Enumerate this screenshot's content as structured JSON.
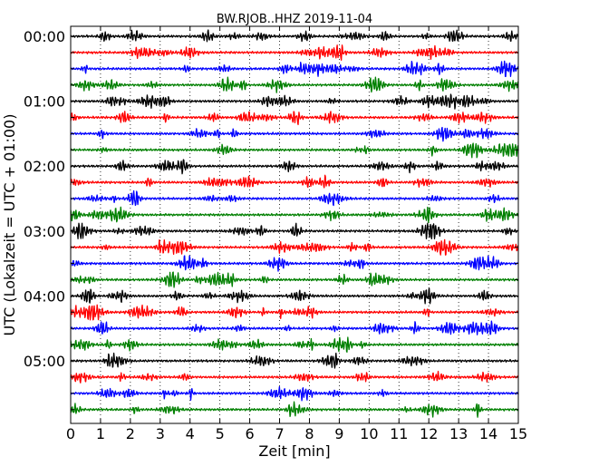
{
  "chart_data": {
    "type": "line",
    "title": "BW.RJOB..HHZ 2019-11-04",
    "xlabel": "Zeit  [min]",
    "ylabel": "UTC (Lokalzeit = UTC + 01:00)",
    "xlim": [
      0,
      15
    ],
    "x_ticks": [
      "0",
      "1",
      "2",
      "3",
      "4",
      "5",
      "6",
      "7",
      "8",
      "9",
      "10",
      "11",
      "12",
      "13",
      "14",
      "15"
    ],
    "y_tick_labels": [
      "00:00",
      "01:00",
      "02:00",
      "03:00",
      "04:00",
      "05:00"
    ],
    "y_tick_rows": [
      0,
      4,
      8,
      12,
      16,
      20
    ],
    "grid": "vertical dotted at each minute",
    "colors": [
      "#000000",
      "#ff0000",
      "#0000ff",
      "#008000"
    ],
    "rows": [
      {
        "start": "00:00",
        "color": "#000000"
      },
      {
        "start": "00:15",
        "color": "#ff0000"
      },
      {
        "start": "00:30",
        "color": "#0000ff"
      },
      {
        "start": "00:45",
        "color": "#008000"
      },
      {
        "start": "01:00",
        "color": "#000000"
      },
      {
        "start": "01:15",
        "color": "#ff0000"
      },
      {
        "start": "01:30",
        "color": "#0000ff"
      },
      {
        "start": "01:45",
        "color": "#008000"
      },
      {
        "start": "02:00",
        "color": "#000000"
      },
      {
        "start": "02:15",
        "color": "#ff0000"
      },
      {
        "start": "02:30",
        "color": "#0000ff"
      },
      {
        "start": "02:45",
        "color": "#008000"
      },
      {
        "start": "03:00",
        "color": "#000000"
      },
      {
        "start": "03:15",
        "color": "#ff0000"
      },
      {
        "start": "03:30",
        "color": "#0000ff"
      },
      {
        "start": "03:45",
        "color": "#008000"
      },
      {
        "start": "04:00",
        "color": "#000000"
      },
      {
        "start": "04:15",
        "color": "#ff0000"
      },
      {
        "start": "04:30",
        "color": "#0000ff"
      },
      {
        "start": "04:45",
        "color": "#008000"
      },
      {
        "start": "05:00",
        "color": "#000000"
      },
      {
        "start": "05:15",
        "color": "#ff0000"
      },
      {
        "start": "05:30",
        "color": "#0000ff"
      },
      {
        "start": "05:45",
        "color": "#008000"
      }
    ]
  }
}
